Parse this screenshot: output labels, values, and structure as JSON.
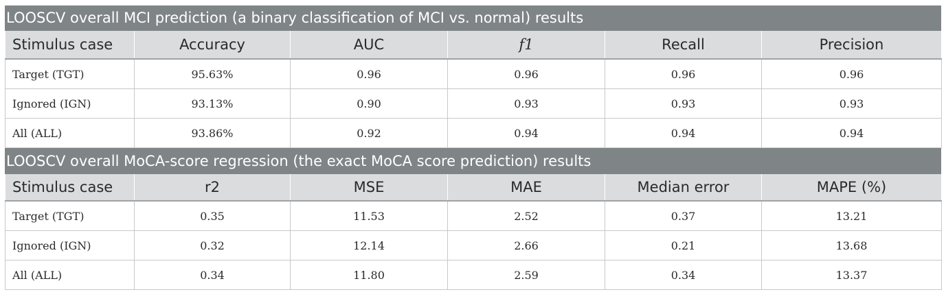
{
  "table1": {
    "caption": "LOOSCV overall MCI prediction (a binary classification of MCI vs. normal) results",
    "headers": [
      "Stimulus case",
      "Accuracy",
      "AUC",
      "f1",
      "Recall",
      "Precision"
    ],
    "rows": [
      [
        "Target (TGT)",
        "95.63%",
        "0.96",
        "0.96",
        "0.96",
        "0.96"
      ],
      [
        "Ignored (IGN)",
        "93.13%",
        "0.90",
        "0.93",
        "0.93",
        "0.93"
      ],
      [
        "All (ALL)",
        "93.86%",
        "0.92",
        "0.94",
        "0.94",
        "0.94"
      ]
    ]
  },
  "table2": {
    "caption": "LOOSCV overall MoCA-score regression (the exact MoCA score prediction) results",
    "headers": [
      "Stimulus case",
      "r2",
      "MSE",
      "MAE",
      "Median error",
      "MAPE (%)"
    ],
    "rows": [
      [
        "Target (TGT)",
        "0.35",
        "11.53",
        "2.52",
        "0.37",
        "13.21"
      ],
      [
        "Ignored (IGN)",
        "0.32",
        "12.14",
        "2.66",
        "0.21",
        "13.68"
      ],
      [
        "All (ALL)",
        "0.34",
        "11.80",
        "2.59",
        "0.34",
        "13.37"
      ]
    ]
  }
}
